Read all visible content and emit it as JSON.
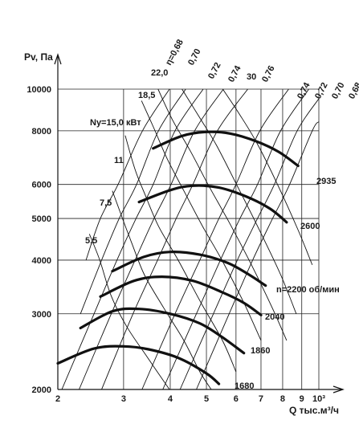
{
  "chart_data": {
    "type": "line",
    "title": "",
    "xlabel": "Q тыс.м³/ч",
    "ylabel": "Pv, Па",
    "xscale": "log",
    "yscale": "log",
    "xlim": [
      2,
      10
    ],
    "ylim": [
      2000,
      10000
    ],
    "x_ticks": [
      {
        "value": 2,
        "label": "2"
      },
      {
        "value": 3,
        "label": "3"
      },
      {
        "value": 4,
        "label": "4"
      },
      {
        "value": 5,
        "label": "5"
      },
      {
        "value": 6,
        "label": "6"
      },
      {
        "value": 7,
        "label": "7"
      },
      {
        "value": 8,
        "label": "8"
      },
      {
        "value": 9,
        "label": "9"
      },
      {
        "value": 10,
        "label": "10³"
      }
    ],
    "y_ticks": [
      {
        "value": 2000,
        "label": "2000"
      },
      {
        "value": 3000,
        "label": "3000"
      },
      {
        "value": 4000,
        "label": "4000"
      },
      {
        "value": 5000,
        "label": "5000"
      },
      {
        "value": 6000,
        "label": "6000"
      },
      {
        "value": 8000,
        "label": "8000"
      },
      {
        "value": 10000,
        "label": "10000"
      }
    ],
    "grid": true,
    "speed_curves": [
      {
        "label": "1680",
        "points": [
          [
            2.0,
            2300
          ],
          [
            2.5,
            2490
          ],
          [
            3.0,
            2520
          ],
          [
            3.5,
            2480
          ],
          [
            4.2,
            2370
          ],
          [
            5.0,
            2180
          ],
          [
            5.4,
            2060
          ]
        ]
      },
      {
        "label": "1860",
        "points": [
          [
            2.3,
            2780
          ],
          [
            2.8,
            3040
          ],
          [
            3.3,
            3080
          ],
          [
            4.0,
            3000
          ],
          [
            4.8,
            2850
          ],
          [
            5.5,
            2650
          ],
          [
            6.3,
            2430
          ]
        ]
      },
      {
        "label": "2040",
        "points": [
          [
            2.6,
            3290
          ],
          [
            3.2,
            3580
          ],
          [
            3.8,
            3660
          ],
          [
            4.6,
            3580
          ],
          [
            5.5,
            3370
          ],
          [
            6.3,
            3180
          ],
          [
            7.0,
            2980
          ]
        ]
      },
      {
        "label": "n=2200 об/мин",
        "points": [
          [
            2.8,
            3770
          ],
          [
            3.4,
            4070
          ],
          [
            4.0,
            4180
          ],
          [
            4.8,
            4120
          ],
          [
            5.7,
            3940
          ],
          [
            6.5,
            3700
          ],
          [
            7.2,
            3490
          ]
        ]
      },
      {
        "label": "2600",
        "points": [
          [
            3.3,
            5460
          ],
          [
            4.0,
            5820
          ],
          [
            4.6,
            5960
          ],
          [
            5.4,
            5900
          ],
          [
            6.4,
            5620
          ],
          [
            7.4,
            5270
          ],
          [
            8.2,
            4900
          ]
        ]
      },
      {
        "label": "2935",
        "points": [
          [
            3.6,
            7280
          ],
          [
            4.3,
            7780
          ],
          [
            5.0,
            7950
          ],
          [
            5.8,
            7880
          ],
          [
            6.8,
            7560
          ],
          [
            7.8,
            7150
          ],
          [
            8.8,
            6630
          ]
        ]
      }
    ],
    "power_labels": [
      "Ny=15,0 кВт",
      "18,5",
      "22,0",
      "30",
      "11",
      "7,5",
      "5,5"
    ],
    "power_lines": [
      {
        "label": "5,5",
        "points": [
          [
            2.43,
            4600
          ],
          [
            2.59,
            4000
          ],
          [
            2.78,
            3300
          ],
          [
            3.06,
            2800
          ],
          [
            3.47,
            2380
          ],
          [
            3.98,
            2000
          ]
        ]
      },
      {
        "label": "7,5",
        "points": [
          [
            2.8,
            5800
          ],
          [
            2.98,
            5000
          ],
          [
            3.15,
            4400
          ],
          [
            3.41,
            3700
          ],
          [
            3.84,
            3100
          ],
          [
            4.35,
            2600
          ],
          [
            4.8,
            2200
          ],
          [
            5.15,
            2000
          ]
        ]
      },
      {
        "label": "11",
        "points": [
          [
            3.03,
            7800
          ],
          [
            3.22,
            6500
          ],
          [
            3.42,
            5700
          ],
          [
            3.72,
            4800
          ],
          [
            4.2,
            4000
          ],
          [
            4.82,
            3200
          ],
          [
            5.52,
            2600
          ],
          [
            6.0,
            2200
          ]
        ]
      },
      {
        "label": "Ny=15,0 кВт",
        "points": [
          [
            3.35,
            9400
          ],
          [
            3.62,
            8100
          ],
          [
            3.92,
            6900
          ],
          [
            4.35,
            5800
          ],
          [
            4.88,
            4800
          ],
          [
            5.5,
            4000
          ],
          [
            6.28,
            3200
          ],
          [
            7.0,
            2600
          ]
        ]
      },
      {
        "label": "18,5",
        "points": [
          [
            3.71,
            10000
          ],
          [
            4.05,
            8500
          ],
          [
            4.52,
            7200
          ],
          [
            5.05,
            6000
          ],
          [
            5.75,
            4900
          ],
          [
            6.6,
            3900
          ],
          [
            7.5,
            3100
          ],
          [
            8.2,
            2600
          ]
        ]
      },
      {
        "label": "22,0",
        "points": [
          [
            4.3,
            10000
          ],
          [
            4.75,
            8700
          ],
          [
            5.32,
            7400
          ],
          [
            6.02,
            6000
          ],
          [
            6.85,
            4800
          ],
          [
            7.9,
            3700
          ],
          [
            8.7,
            3000
          ]
        ]
      },
      {
        "label": "30",
        "points": [
          [
            5.53,
            10000
          ],
          [
            6.1,
            8800
          ],
          [
            6.82,
            7500
          ],
          [
            7.75,
            6000
          ],
          [
            8.8,
            4700
          ],
          [
            9.6,
            3900
          ]
        ]
      }
    ],
    "efficiency_labels": [
      "η=0,68",
      "0,70",
      "0,72",
      "0,74",
      "0,76",
      "0,74",
      "0,72",
      "0,70",
      "0,68"
    ],
    "efficiency_rays": [
      {
        "points": [
          [
            3.98,
            10000
          ],
          [
            3.37,
            8000
          ],
          [
            2.9,
            6000
          ],
          [
            2.6,
            5000
          ],
          [
            2.38,
            4000
          ]
        ]
      },
      {
        "points": [
          [
            4.4,
            10000
          ],
          [
            3.72,
            8000
          ],
          [
            3.25,
            6000
          ],
          [
            2.92,
            5000
          ],
          [
            2.62,
            4000
          ],
          [
            2.3,
            3000
          ]
        ]
      },
      {
        "points": [
          [
            4.9,
            10000
          ],
          [
            4.12,
            8000
          ],
          [
            3.6,
            6000
          ],
          [
            3.24,
            5000
          ],
          [
            2.88,
            4000
          ],
          [
            2.5,
            3000
          ],
          [
            2.05,
            2000
          ]
        ]
      },
      {
        "points": [
          [
            5.55,
            10000
          ],
          [
            4.65,
            8000
          ],
          [
            4.02,
            6000
          ],
          [
            3.62,
            5000
          ],
          [
            3.22,
            4000
          ],
          [
            2.78,
            3000
          ],
          [
            2.28,
            2000
          ]
        ]
      },
      {
        "points": [
          [
            6.45,
            10000
          ],
          [
            5.35,
            8000
          ],
          [
            4.6,
            6000
          ],
          [
            4.15,
            5000
          ],
          [
            3.7,
            4000
          ],
          [
            3.18,
            3000
          ],
          [
            2.62,
            2000
          ]
        ]
      },
      {
        "points": [
          [
            8.3,
            10000
          ],
          [
            6.95,
            8000
          ],
          [
            6.0,
            6000
          ],
          [
            5.4,
            5000
          ],
          [
            4.8,
            4000
          ],
          [
            4.12,
            3000
          ],
          [
            3.36,
            2000
          ]
        ]
      },
      {
        "points": [
          [
            9.4,
            10000
          ],
          [
            7.9,
            8000
          ],
          [
            6.85,
            6000
          ],
          [
            6.15,
            5000
          ],
          [
            5.45,
            4000
          ],
          [
            4.7,
            3000
          ],
          [
            3.82,
            2000
          ]
        ]
      },
      {
        "points": [
          [
            10.0,
            9500
          ],
          [
            8.75,
            8000
          ],
          [
            7.6,
            6000
          ],
          [
            6.85,
            5000
          ],
          [
            6.05,
            4000
          ],
          [
            5.22,
            3000
          ],
          [
            4.25,
            2000
          ]
        ]
      },
      {
        "points": [
          [
            10.0,
            8400
          ],
          [
            9.6,
            8000
          ],
          [
            8.35,
            6000
          ],
          [
            7.52,
            5000
          ],
          [
            6.65,
            4000
          ],
          [
            5.75,
            3000
          ],
          [
            4.7,
            2000
          ]
        ]
      }
    ]
  }
}
